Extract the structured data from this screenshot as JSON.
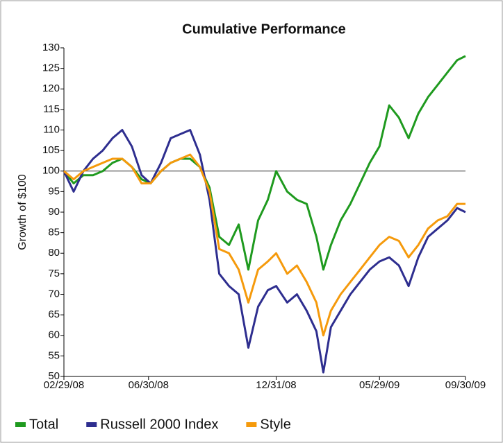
{
  "chart_data": {
    "type": "line",
    "title": "Cumulative Performance",
    "y_label": "Growth of $100",
    "x": [
      "02/29/08",
      "03/14/08",
      "03/28/08",
      "04/11/08",
      "04/25/08",
      "05/09/08",
      "05/23/08",
      "06/06/08",
      "06/20/08",
      "07/03/08",
      "07/18/08",
      "08/01/08",
      "08/15/08",
      "08/29/08",
      "09/12/08",
      "09/26/08",
      "10/10/08",
      "10/24/08",
      "11/07/08",
      "11/21/08",
      "12/05/08",
      "12/19/08",
      "12/31/08",
      "01/16/09",
      "01/30/09",
      "02/13/09",
      "02/27/09",
      "03/09/09",
      "03/20/09",
      "04/03/09",
      "04/17/09",
      "05/01/09",
      "05/15/09",
      "05/29/09",
      "06/12/09",
      "06/26/09",
      "07/10/09",
      "07/24/09",
      "08/07/09",
      "08/21/09",
      "09/04/09",
      "09/18/09",
      "09/30/09"
    ],
    "series": [
      {
        "name": "Total",
        "color": "#1f9a1f",
        "values": [
          100,
          97,
          99,
          99,
          100,
          102,
          103,
          101,
          98,
          97,
          100,
          102,
          103,
          103,
          101,
          96,
          84,
          82,
          87,
          76,
          88,
          93,
          100,
          95,
          93,
          92,
          84,
          76,
          82,
          88,
          92,
          97,
          102,
          106,
          116,
          113,
          108,
          114,
          118,
          121,
          124,
          127,
          128
        ]
      },
      {
        "name": "Russell 2000 Index",
        "color": "#2e2e8f",
        "values": [
          100,
          95,
          100,
          103,
          105,
          108,
          110,
          106,
          99,
          97,
          102,
          108,
          109,
          110,
          104,
          93,
          75,
          72,
          70,
          57,
          67,
          71,
          72,
          68,
          70,
          66,
          61,
          51,
          62,
          66,
          70,
          73,
          76,
          78,
          79,
          77,
          72,
          79,
          84,
          86,
          88,
          91,
          90
        ]
      },
      {
        "name": "Style",
        "color": "#f59a0c",
        "values": [
          100,
          98,
          100,
          101,
          102,
          103,
          103,
          101,
          97,
          97,
          100,
          102,
          103,
          104,
          101,
          95,
          81,
          80,
          76,
          68,
          76,
          78,
          80,
          75,
          77,
          73,
          68,
          60,
          66,
          70,
          73,
          76,
          79,
          82,
          84,
          83,
          79,
          82,
          86,
          88,
          89,
          92,
          92
        ]
      }
    ],
    "reference_line": 100,
    "xlim": [
      "02/29/08",
      "09/30/09"
    ],
    "xticks": [
      "02/29/08",
      "06/30/08",
      "12/31/08",
      "05/29/09",
      "09/30/09"
    ],
    "ylim": [
      50,
      130
    ],
    "yticks": [
      50,
      55,
      60,
      65,
      70,
      75,
      80,
      85,
      90,
      95,
      100,
      105,
      110,
      115,
      120,
      125,
      130
    ],
    "legend": "bottom"
  }
}
